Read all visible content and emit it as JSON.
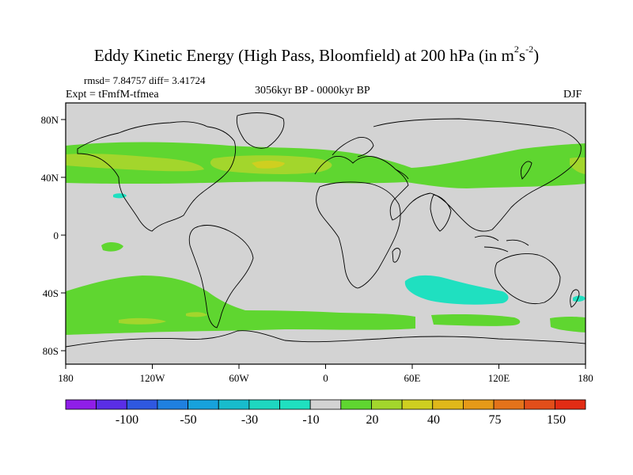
{
  "title": {
    "main": "Eddy Kinetic Energy (High Pass, Bloomfield) at 200 hPa (in m",
    "sup1": "2",
    "unit_s": "s",
    "sup2": "-2",
    "close": ")"
  },
  "stats": {
    "rmsd_diff": "rmsd= 7.84757 diff= 3.41724",
    "expt": "Expt = tFmfM-tfmea",
    "period": "3056kyr BP - 0000kyr BP",
    "season": "DJF"
  },
  "map": {
    "lon_labels": [
      "180",
      "120W",
      "60W",
      "0",
      "60E",
      "120E",
      "180"
    ],
    "lat_labels": [
      "80N",
      "40N",
      "0",
      "40S",
      "80S"
    ],
    "colors": {
      "background": "#d3d3d3",
      "green": "#5fd630",
      "yellowgreen": "#a3d62c",
      "cyan": "#1fe0c0",
      "yellow": "#cfcf20",
      "coast": "#000000"
    }
  },
  "colorbar": {
    "colors": [
      "#8f1ee8",
      "#5a2ee6",
      "#2f58e0",
      "#1f80e0",
      "#17a2dc",
      "#18bccc",
      "#1ed7c0",
      "#1fe0c0",
      "#d3d3d3",
      "#5fd630",
      "#a3d62c",
      "#cfcf20",
      "#e0b81a",
      "#e69a18",
      "#e4731a",
      "#e24e1a",
      "#e22c14"
    ],
    "labels": [
      "-100",
      "-50",
      "-30",
      "-10",
      "20",
      "40",
      "75",
      "150"
    ]
  }
}
